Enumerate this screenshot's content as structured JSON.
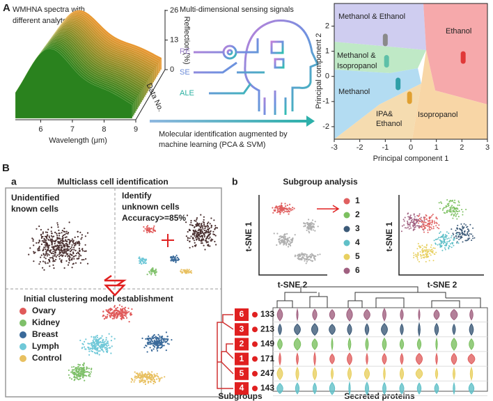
{
  "panel_a": {
    "label": "A",
    "spectra": {
      "title_lines": [
        "WMHNA spectra with",
        "different analytes"
      ],
      "x_label": "Wavelength (μm)",
      "xlim": [
        5.2,
        9
      ],
      "x_ticks": [
        6,
        7,
        8,
        9
      ],
      "z_label": "Reflection (%)",
      "zlim": [
        0,
        26
      ],
      "z_ticks": [
        0,
        13,
        26
      ],
      "y_label": "Data No."
    },
    "sensing": {
      "title": "Multi-dimensional sensing signals",
      "signals": [
        "RE",
        "SE",
        "ALE"
      ],
      "caption_lines": [
        "Molecular identification augmented by",
        "machine learning (PCA & SVM)"
      ]
    },
    "pca": {
      "x_label": "Principal component 1",
      "y_label": "Principal component 2",
      "xlim": [
        -3,
        3
      ],
      "ylim": [
        -2.5,
        2.9
      ],
      "xticks": [
        -3,
        -2,
        -1,
        0,
        1,
        2,
        3
      ],
      "yticks": [
        -2,
        -1,
        0,
        1,
        2
      ],
      "regions": {
        "methanol_ethanol": [
          "Methanol & Ethanol"
        ],
        "ethanol": [
          "Ethanol"
        ],
        "methanol_isopropanol": [
          "Methanol &",
          "Isopropanol"
        ],
        "methanol": [
          "Methanol"
        ],
        "ipa_ethanol": [
          "IPA&",
          "Ethanol"
        ],
        "isopropanol": [
          "Isopropanol"
        ]
      },
      "clusters": [
        {
          "x": -1,
          "y": 1.45,
          "color": "#8a8a8a"
        },
        {
          "x": -0.95,
          "y": 0.6,
          "color": "#5ec0a8"
        },
        {
          "x": -0.5,
          "y": -0.3,
          "color": "#2f9fa8"
        },
        {
          "x": -0.05,
          "y": -0.85,
          "color": "#e0a030"
        },
        {
          "x": 2.05,
          "y": 0.75,
          "color": "#e03838"
        }
      ]
    }
  },
  "panel_b": {
    "label": "B",
    "a": {
      "label": "a",
      "title": "Multiclass cell identification",
      "unidentified": [
        "Unidentified",
        "known cells"
      ],
      "identify": [
        "Identify",
        "unknown cells"
      ],
      "accuracy": "Accuracy>=85%",
      "initial": "Initial clustering model establishment",
      "legend": [
        {
          "name": "Ovary",
          "color": "#e05a5a"
        },
        {
          "name": "Kidney",
          "color": "#7fc06a"
        },
        {
          "name": "Breast",
          "color": "#3a6a9a"
        },
        {
          "name": "Lymph",
          "color": "#6fc8d8"
        },
        {
          "name": "Control",
          "color": "#e8c060"
        }
      ]
    },
    "b": {
      "label": "b",
      "title": "Subgroup analysis",
      "tsne_x": "t-SNE 2",
      "tsne_y": "t-SNE 1",
      "legend": [
        {
          "name": "1",
          "color": "#e06060"
        },
        {
          "name": "2",
          "color": "#7cc060"
        },
        {
          "name": "3",
          "color": "#3c5a78"
        },
        {
          "name": "4",
          "color": "#60c0c8"
        },
        {
          "name": "5",
          "color": "#e8d060"
        },
        {
          "name": "6",
          "color": "#a06080"
        }
      ],
      "rows": [
        {
          "id": "6",
          "count": 133
        },
        {
          "id": "3",
          "count": 213
        },
        {
          "id": "2",
          "count": 149
        },
        {
          "id": "1",
          "count": 171
        },
        {
          "id": "5",
          "count": 247
        },
        {
          "id": "4",
          "count": 143
        }
      ],
      "subgroups_label": "Subgroups",
      "proteins_label": "Secreted proteins"
    }
  }
}
